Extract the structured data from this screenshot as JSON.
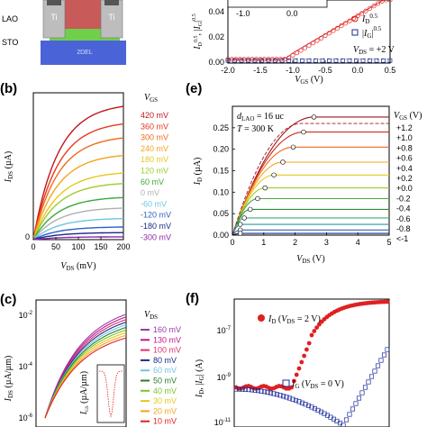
{
  "panel_labels": [
    "(b)",
    "(c)",
    "(e)",
    "(f)"
  ],
  "device": {
    "layers": [
      "LAO",
      "STO"
    ],
    "contact_label": "Ti",
    "channel_label": "2DEL",
    "colors": {
      "lao": "#c85a5a",
      "sto": "#4a63d6",
      "channel": "#6fd04a",
      "metal": "#bdbdbd",
      "cap": "#555555"
    }
  },
  "chart_data": [
    {
      "id": "a_right",
      "type": "scatter",
      "xlabel": "V_GS (V)",
      "ylim": [
        0,
        0.05
      ],
      "xlim": [
        -2.0,
        0.5
      ],
      "xticks": [
        "-2.0",
        "-1.5",
        "-1.0",
        "-0.5",
        "0.0",
        "0.5"
      ],
      "yticks": [
        "0.00",
        "0.02",
        "0.04"
      ],
      "legend": [
        "I_D^0.5",
        "|I_G|^0.5"
      ],
      "annotation": "V_DS = +2 V",
      "inset_ticks": [
        "-1.0",
        "0.0"
      ],
      "colors": {
        "id": "#e02020",
        "ig": "#1a2a9a"
      },
      "series": [
        {
          "name": "I_D^0.5",
          "x": [
            -2.0,
            -1.5,
            -1.2,
            -1.1,
            -1.0,
            -0.8,
            -0.6,
            -0.4,
            -0.2,
            0.0,
            0.2,
            0.4,
            0.5
          ],
          "values": [
            0.003,
            0.003,
            0.003,
            0.004,
            0.008,
            0.014,
            0.02,
            0.026,
            0.032,
            0.038,
            0.044,
            0.05,
            0.053
          ]
        },
        {
          "name": "|I_G|^0.5",
          "x": [
            -2.0,
            -1.5,
            -1.0,
            -0.5,
            0.0,
            0.5
          ],
          "values": [
            0.002,
            0.002,
            0.002,
            0.002,
            0.002,
            0.002
          ]
        }
      ]
    },
    {
      "id": "b",
      "type": "line",
      "xlabel": "V_DS (mV)",
      "ylabel": "I_DS (µA)",
      "xlim": [
        0,
        200
      ],
      "xticks": [
        "0",
        "50",
        "100",
        "150",
        "200"
      ],
      "legend_title": "V_GS",
      "series": [
        {
          "name": "420 mV",
          "color": "#c0161c",
          "isat": 19.0
        },
        {
          "name": "360 mV",
          "color": "#e8381e",
          "isat": 16.5
        },
        {
          "name": "300 mV",
          "color": "#f06a1c",
          "isat": 14.5
        },
        {
          "name": "240 mV",
          "color": "#f5a41c",
          "isat": 12.0
        },
        {
          "name": "180 mV",
          "color": "#e6c81e",
          "isat": 9.5
        },
        {
          "name": "120 mV",
          "color": "#9ccc2a",
          "isat": 8.0
        },
        {
          "name": "60 mV",
          "color": "#3ca83a",
          "isat": 6.0
        },
        {
          "name": "0 mV",
          "color": "#b0b0b0",
          "isat": 4.5
        },
        {
          "name": "-60 mV",
          "color": "#6fc4e4",
          "isat": 3.0
        },
        {
          "name": "-120 mV",
          "color": "#2f5fc4",
          "isat": 1.8
        },
        {
          "name": "-180 mV",
          "color": "#1a2a8a",
          "isat": 1.0
        },
        {
          "name": "-300 mV",
          "color": "#8a2aa8",
          "isat": 0.4
        }
      ]
    },
    {
      "id": "c",
      "type": "line",
      "ylabel": "I_DS (µA/µm)",
      "yticks": [
        "10^-2",
        "10^-4",
        "10^-6"
      ],
      "legend_title": "V_DS",
      "inset_ylabel": "I_GS (µA/µm)",
      "series": [
        {
          "name": "160 mV",
          "color": "#9a3aa8"
        },
        {
          "name": "130 mV",
          "color": "#c0168a"
        },
        {
          "name": "100 mV",
          "color": "#e03070"
        },
        {
          "name": "80 mV",
          "color": "#1a2a8a"
        },
        {
          "name": "60 mV",
          "color": "#6fc4e4"
        },
        {
          "name": "50 mV",
          "color": "#2c7a2c"
        },
        {
          "name": "40 mV",
          "color": "#7ac62a"
        },
        {
          "name": "30 mV",
          "color": "#e6c81e"
        },
        {
          "name": "20 mV",
          "color": "#f5a41c"
        },
        {
          "name": "10 mV",
          "color": "#e02020"
        }
      ]
    },
    {
      "id": "e",
      "type": "line",
      "xlabel": "V_DS (V)",
      "ylabel": "I_D (µA)",
      "xlim": [
        0,
        5
      ],
      "ylim": [
        0,
        0.3
      ],
      "xticks": [
        "0",
        "1",
        "2",
        "3",
        "4",
        "5"
      ],
      "yticks": [
        "0.00",
        "0.05",
        "0.10",
        "0.15",
        "0.20",
        "0.25"
      ],
      "annotations": [
        "d_LAO = 16 uc",
        "T = 300 K"
      ],
      "legend_title": "V_GS (V)",
      "series": [
        {
          "name": "+1.2",
          "color": "#a0161a",
          "isat": 0.275
        },
        {
          "name": "+1.0",
          "color": "#d02a1e",
          "isat": 0.24
        },
        {
          "name": "+0.8",
          "color": "#ee6a1c",
          "isat": 0.205
        },
        {
          "name": "+0.6",
          "color": "#f5a41c",
          "isat": 0.17
        },
        {
          "name": "+0.4",
          "color": "#e6c81e",
          "isat": 0.14
        },
        {
          "name": "+0.2",
          "color": "#9ccc2a",
          "isat": 0.11
        },
        {
          "name": "+0.0",
          "color": "#4aa83a",
          "isat": 0.085
        },
        {
          "name": "-0.2",
          "color": "#2c8a3a",
          "isat": 0.06
        },
        {
          "name": "-0.4",
          "color": "#3ab07a",
          "isat": 0.04
        },
        {
          "name": "-0.6",
          "color": "#2a9a9a",
          "isat": 0.025
        },
        {
          "name": "-0.8",
          "color": "#2a6ab0",
          "isat": 0.012
        },
        {
          "name": "<-1",
          "color": "#1a2a8a",
          "isat": 0.004
        }
      ]
    },
    {
      "id": "f",
      "type": "scatter",
      "ylabel": "I_D, |I_G| (A)",
      "yticks": [
        "10^-7",
        "10^-9",
        "10^-11"
      ],
      "legend": [
        "I_D (V_DS = 2 V)",
        "I_G (V_DS = 0 V)"
      ],
      "colors": {
        "id": "#e02020",
        "ig": "#1a2a9a"
      }
    }
  ]
}
